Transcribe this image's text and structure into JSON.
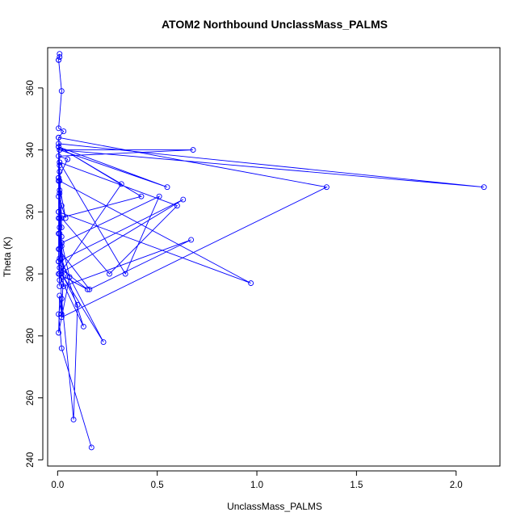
{
  "chart_data": {
    "type": "line",
    "title": "ATOM2 Northbound UnclassMass_PALMS",
    "xlabel": "UnclassMass_PALMS",
    "ylabel": "Theta (K)",
    "xlim": [
      -0.05,
      2.22
    ],
    "ylim": [
      238,
      373
    ],
    "xticks": [
      0.0,
      0.5,
      1.0,
      1.5,
      2.0
    ],
    "xtick_labels": [
      "0.0",
      "0.5",
      "1.0",
      "1.5",
      "2.0"
    ],
    "yticks": [
      240,
      260,
      280,
      300,
      320,
      340,
      360
    ],
    "ytick_labels": [
      "240",
      "260",
      "280",
      "300",
      "320",
      "340",
      "360"
    ],
    "grid": false,
    "series": [
      {
        "color": "#0000ff",
        "marker": "open-circle",
        "x": [
          0.17,
          0.02,
          0.005,
          0.02,
          0.08,
          0.1,
          0.03,
          0.23,
          0.01,
          0.02,
          0.005,
          0.02,
          0.13,
          0.005,
          0.15,
          0.01,
          0.02,
          0.005,
          0.16,
          0.67,
          0.03,
          0.005,
          0.97,
          0.01,
          0.02,
          0.26,
          0.6,
          0.01,
          0.34,
          0.51,
          0.02,
          0.01,
          0.42,
          0.005,
          0.005,
          0.63,
          0.01,
          0.32,
          0.005,
          0.55,
          0.01,
          2.14,
          0.005,
          0.02,
          1.35,
          0.005,
          0.01,
          0.68,
          0.005,
          0.05,
          0.005,
          0.01,
          0.01,
          0.005,
          0.01,
          0.01,
          0.005,
          0.01,
          0.01,
          0.005,
          0.01,
          0.005,
          0.02,
          0.03,
          0.02,
          0.01,
          0.005,
          0.06,
          0.01,
          0.005,
          0.02,
          0.04,
          0.005,
          0.01,
          0.01,
          0.02,
          0.005,
          0.03,
          0.005,
          0.02,
          0.005,
          0.01,
          0.005,
          0.01
        ],
        "y": [
          244,
          276,
          287,
          292,
          253,
          290,
          299,
          278,
          305,
          312,
          318,
          305,
          283,
          300,
          295,
          302,
          310,
          308,
          295,
          311,
          296,
          320,
          297,
          330,
          318,
          300,
          322,
          336,
          300,
          325,
          310,
          318,
          325,
          341,
          304,
          324,
          300,
          329,
          341,
          328,
          340,
          328,
          342,
          286,
          328,
          344,
          340,
          340,
          338,
          337,
          331,
          336,
          327,
          313,
          308,
          296,
          304,
          298,
          315,
          320,
          326,
          331,
          309,
          301,
          287,
          293,
          281,
          299,
          313,
          325,
          322,
          318,
          330,
          335,
          333,
          315,
          344,
          346,
          347,
          359,
          369,
          370,
          369,
          371
        ]
      }
    ]
  }
}
